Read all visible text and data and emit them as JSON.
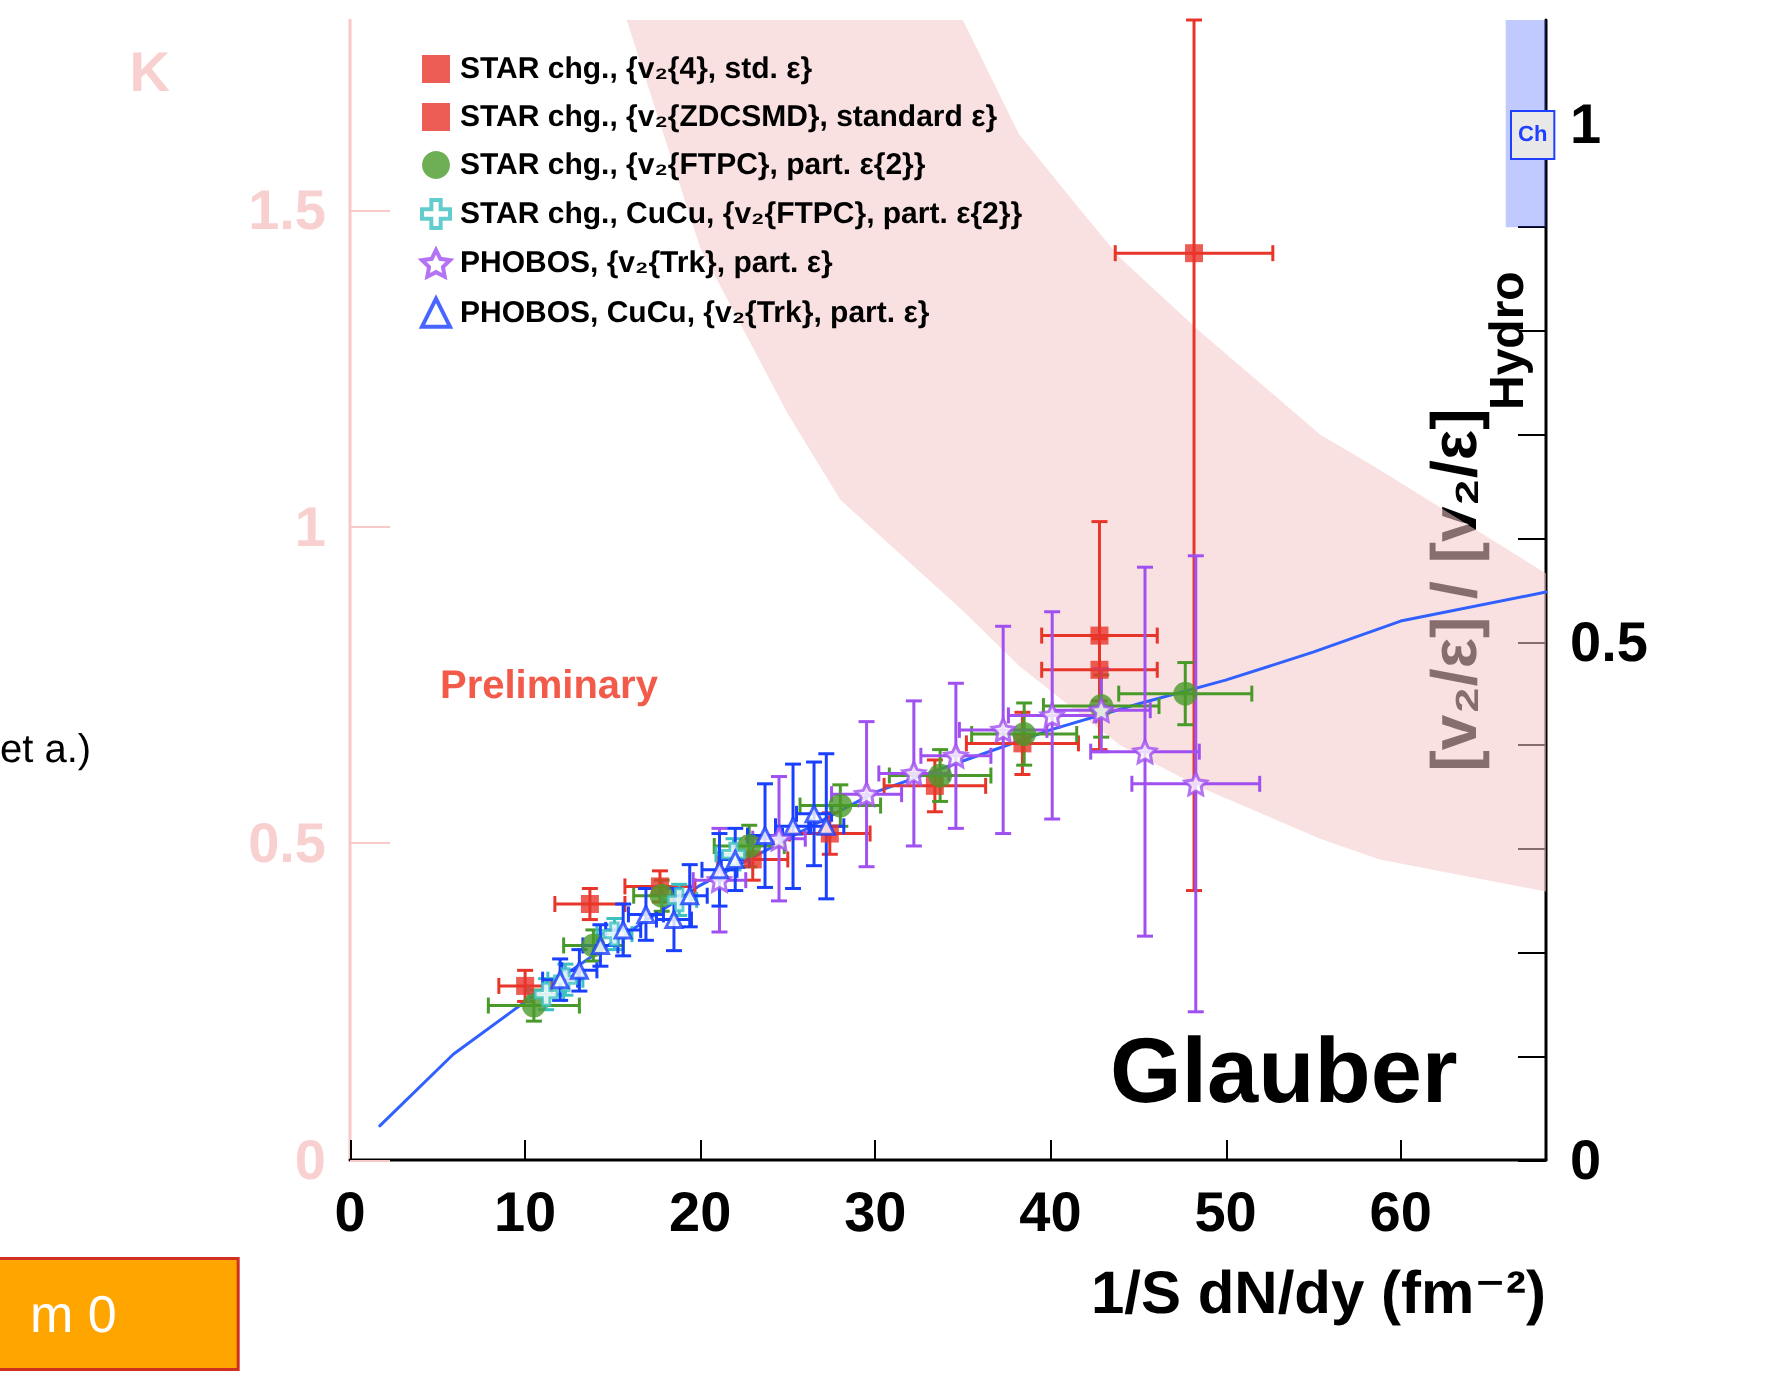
{
  "chart_data": {
    "type": "scatter",
    "xlabel": "1/S dN/dy (fm⁻²)",
    "ylabel": "K",
    "y2label": "[v₂/ε] / [v₂/ε]",
    "xlim": [
      0,
      68.3
    ],
    "xticks": [
      0,
      10,
      20,
      30,
      40,
      50,
      60
    ],
    "ylim": [
      0,
      1.8
    ],
    "yticks": [
      0,
      0.5,
      1,
      1.5
    ],
    "y2lim": [
      0,
      1.1
    ],
    "y2ticks": [
      0,
      {
        "value": 0.1,
        "label": null
      },
      {
        "value": 0.2,
        "label": null
      },
      {
        "value": 0.3,
        "label": null
      },
      {
        "value": 0.4,
        "label": null
      },
      0.5,
      {
        "value": 0.6,
        "label": null
      },
      {
        "value": 0.7,
        "label": null
      },
      {
        "value": 0.8,
        "label": null
      },
      {
        "value": 0.9,
        "label": null
      },
      1
    ],
    "grid": false,
    "legend": "top left",
    "series": [
      {
        "name": "STAR chg., {v₂{4}, std. ε}",
        "axis": "y2",
        "marker": "square",
        "color": "#e8352a",
        "x": [
          10.0,
          13.7,
          17.7,
          23.0,
          27.4,
          33.4,
          38.4,
          42.8
        ],
        "values": [
          0.168,
          0.247,
          0.264,
          0.29,
          0.315,
          0.361,
          0.402,
          0.473
        ],
        "errors": [
          0.015,
          0.015,
          0.015,
          0.02,
          0.02,
          0.025,
          0.03,
          0.03
        ],
        "xerrors": [
          1.5,
          2,
          2,
          2,
          2.3,
          2.9,
          3.2,
          3.3
        ]
      },
      {
        "name": "STAR chg., {v₂{ZDCSMD}, standard ε}",
        "axis": "y2",
        "marker": "square",
        "color": "#e8352a",
        "x": [
          42.8,
          48.2
        ],
        "values": [
          0.506,
          0.875
        ],
        "errors": [
          0.11,
          [
            0.26,
            1.1
          ]
        ],
        "xerrors": [
          3.3,
          4.5
        ]
      },
      {
        "name": "STAR chg., {v₂{FTPC}, part. ε{2}}",
        "axis": "y2",
        "marker": "circle",
        "color": "#4a9a2a",
        "x": [
          10.5,
          13.9,
          17.8,
          22.8,
          28.0,
          33.7,
          38.5,
          42.9,
          47.7
        ],
        "values": [
          0.149,
          0.207,
          0.255,
          0.303,
          0.342,
          0.371,
          0.411,
          0.438,
          0.45
        ],
        "errors": [
          0.015,
          0.015,
          0.015,
          0.02,
          0.02,
          0.025,
          0.03,
          0.03,
          0.03
        ],
        "xerrors": [
          2.6,
          1.7,
          1.6,
          2,
          2.3,
          2.9,
          3,
          3.3,
          3.8
        ]
      },
      {
        "name": "STAR chg., CuCu, {v₂{FTPC}, part. ε{2}}",
        "axis": "y2",
        "marker": "cross",
        "color": "#3cc0c0",
        "x": [
          11.2,
          12.3,
          15.1,
          18.8,
          21.9
        ],
        "values": [
          0.16,
          0.174,
          0.218,
          0.251,
          0.295
        ],
        "errors": [
          0.015,
          0.015,
          0.015,
          0.015,
          0.015
        ],
        "xerrors": [
          1,
          1,
          1,
          1,
          1
        ]
      },
      {
        "name": "PHOBOS, {v₂{Trk}, part. ε}",
        "axis": "y2",
        "marker": "star",
        "color": "#a050f0",
        "x": [
          21.1,
          24.5,
          29.5,
          32.2,
          34.6,
          37.3,
          40.1,
          42.9,
          45.4,
          48.3
        ],
        "values": [
          0.27,
          0.31,
          0.353,
          0.373,
          0.39,
          0.415,
          0.429,
          0.434,
          0.394,
          0.363
        ],
        "errors": [
          0.05,
          0.06,
          0.07,
          0.07,
          0.07,
          0.1,
          0.1,
          0.04,
          0.178,
          0.22
        ],
        "xerrors": [
          1.5,
          1.5,
          2,
          2,
          2,
          2.5,
          2.5,
          2.8,
          3.1,
          3.65
        ]
      },
      {
        "name": "PHOBOS, CuCu, {v₂{Trk}, part. ε}",
        "axis": "y2",
        "marker": "triangle",
        "color": "#1a40ff",
        "x": [
          12.0,
          13.1,
          14.3,
          15.6,
          16.9,
          18.5,
          19.4,
          21.1,
          22.0,
          23.7,
          25.3,
          26.5,
          27.2
        ],
        "values": [
          0.174,
          0.183,
          0.207,
          0.222,
          0.237,
          0.232,
          0.255,
          0.28,
          0.29,
          0.313,
          0.322,
          0.334,
          0.322
        ],
        "errors": [
          0.02,
          0.02,
          0.02,
          0.025,
          0.025,
          0.03,
          0.03,
          0.035,
          0.03,
          0.05,
          0.06,
          0.05,
          0.07
        ],
        "xerrors": [
          1,
          1,
          1,
          1,
          1,
          1,
          1,
          1,
          0.8,
          1,
          1,
          1,
          1
        ]
      },
      {
        "type": "line",
        "axis": "y2",
        "marker": "none",
        "line_style": "solid",
        "color": "#3060ff",
        "x": [
          1.7,
          5.9,
          9.7,
          15,
          20,
          25,
          30,
          35,
          40,
          45,
          50,
          55,
          60,
          68.3
        ],
        "values": [
          0.033,
          0.102,
          0.149,
          0.21,
          0.265,
          0.31,
          0.355,
          0.385,
          0.415,
          0.44,
          0.463,
          0.49,
          0.52,
          0.548
        ]
      },
      {
        "type": "area",
        "axis": "y2",
        "color": "#f6c8c8",
        "x": [
          15.8,
          20,
          25,
          28,
          35,
          38.2,
          41.7,
          44,
          48.5,
          55.4,
          58.8,
          68.3
        ],
        "values": [
          null,
          null,
          null,
          null,
          null,
          null,
          null,
          null,
          null,
          null,
          null,
          null
        ],
        "lower": [
          1.1,
          0.88,
          0.72,
          0.637,
          0.53,
          0.477,
          0.43,
          0.4,
          0.36,
          0.31,
          0.29,
          0.259
        ],
        "upper": [
          1.1,
          1.1,
          1.1,
          1.1,
          1.1,
          0.99,
          0.917,
          0.87,
          0.8,
          0.7,
          0.666,
          0.566
        ]
      },
      {
        "type": "area",
        "axis": "y2",
        "color": "#3050ff",
        "x": [
          66,
          68.3
        ],
        "values": [
          null,
          null
        ],
        "lower": [
          0.9,
          0.9
        ],
        "upper": [
          1.1,
          1.1
        ]
      }
    ],
    "annotations": [
      "Preliminary",
      "Glauber",
      "Hydro",
      "et a.)",
      "m 0",
      "Ch"
    ]
  }
}
